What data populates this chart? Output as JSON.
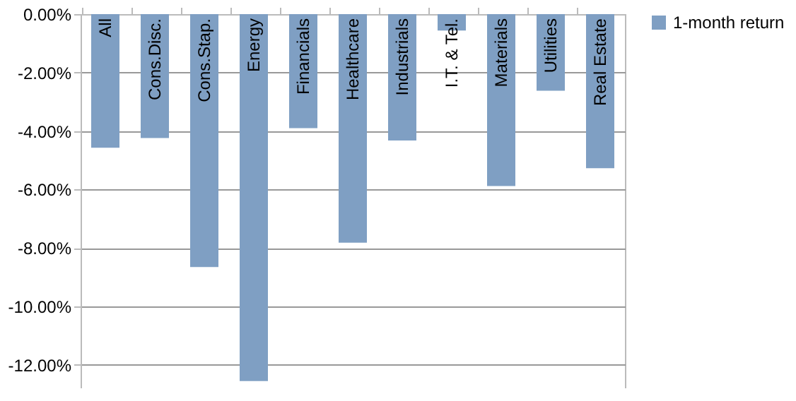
{
  "chart_data": {
    "type": "bar",
    "categories": [
      "All",
      "Cons.Disc.",
      "Cons.Stap.",
      "Energy",
      "Financials",
      "Healthcare",
      "Industrials",
      "I.T. & Tel.",
      "Materials",
      "Utilities",
      "Real Estate"
    ],
    "series": [
      {
        "name": "1-month return",
        "color": "#7f9fc3",
        "values": [
          -4.57,
          -4.24,
          -8.65,
          -12.55,
          -3.9,
          -7.82,
          -4.32,
          -0.56,
          -5.88,
          -2.62,
          -5.27
        ]
      }
    ],
    "ylim": [
      -12.8,
      0
    ],
    "yticks": [
      {
        "value": 0,
        "label": "0.00%"
      },
      {
        "value": -2,
        "label": "-2.00%"
      },
      {
        "value": -4,
        "label": "-4.00%"
      },
      {
        "value": -6,
        "label": "-6.00%"
      },
      {
        "value": -8,
        "label": "-8.00%"
      },
      {
        "value": -10,
        "label": "-10.00%"
      },
      {
        "value": -12,
        "label": "-12.00%"
      }
    ],
    "grid": "y",
    "legend": "right"
  }
}
